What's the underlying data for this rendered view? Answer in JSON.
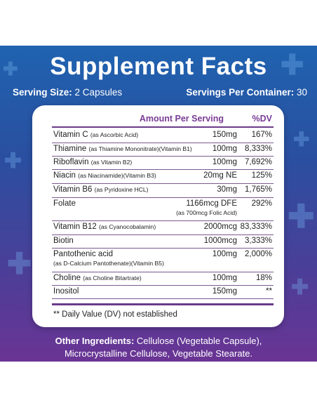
{
  "title": "Supplement Facts",
  "serving_size": {
    "label": "Serving Size:",
    "value": "2 Capsules"
  },
  "servings_per_container": {
    "label": "Servings Per Container:",
    "value": "30"
  },
  "table": {
    "header_amount": "Amount Per Serving",
    "header_dv": "%DV",
    "rows": [
      {
        "name": "Vitamin C",
        "detail": "(as Ascorbic Acid)",
        "amount": "150mg",
        "dv": "167%"
      },
      {
        "name": "Thiamine",
        "detail": "(as Thiamine Mononitrate)(Vitamin B1)",
        "amount": "100mg",
        "dv": "8,333%"
      },
      {
        "name": "Riboflavin",
        "detail": "(as Vitamin B2)",
        "amount": "100mg",
        "dv": "7,692%"
      },
      {
        "name": "Niacin",
        "detail": "(as Niacinamide)(Vitamin B3)",
        "amount": "20mg NE",
        "dv": "125%"
      },
      {
        "name": "Vitamin B6",
        "detail": "(as Pyridoxine HCL)",
        "amount": "30mg",
        "dv": "1,765%"
      },
      {
        "name": "Folate",
        "detail": "",
        "amount": "1166mcg DFE",
        "amount_detail": "(as 700mcg Folic Acid)",
        "dv": "292%"
      },
      {
        "name": "Vitamin B12",
        "detail": "(as Cyanocobalamin)",
        "amount": "2000mcg",
        "dv": "83,333%"
      },
      {
        "name": "Biotin",
        "detail": "",
        "amount": "1000mcg",
        "dv": "3,333%"
      },
      {
        "name": "Pantothenic acid",
        "detail": "",
        "sub_detail": "(as D-Calcium Pantothenate)(Vitamin B5)",
        "amount": "100mg",
        "dv": "2,000%"
      },
      {
        "name": "Choline",
        "detail": "(as Choline Bitartrate)",
        "amount": "100mg",
        "dv": "18%"
      },
      {
        "name": "Inositol",
        "detail": "",
        "amount": "150mg",
        "dv": "**"
      }
    ],
    "footnote": "** Daily Value (DV) not established"
  },
  "other_ingredients": {
    "label": "Other Ingredients:",
    "line1": "Cellulose (Vegetable Capsule),",
    "line2": "Microcrystalline Cellulose, Vegetable Stearate."
  },
  "colors": {
    "accent": "#7a3b95",
    "background_top": "#1f63b0",
    "background_bottom": "#6a3494"
  }
}
